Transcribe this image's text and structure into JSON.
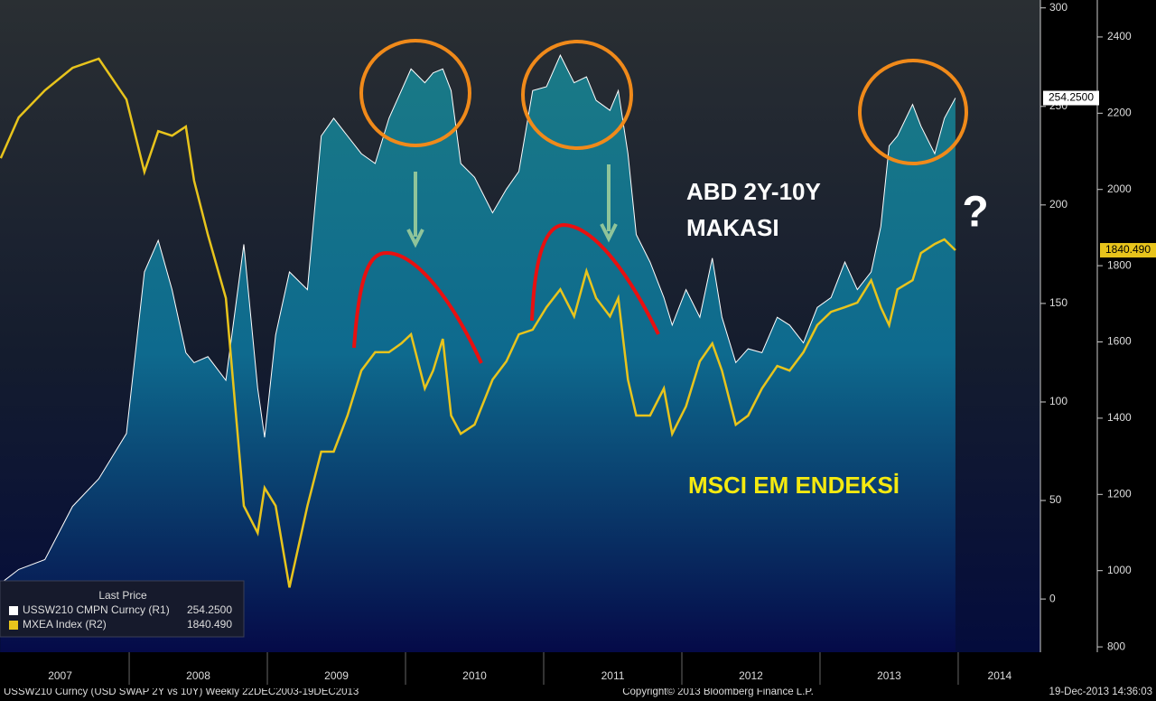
{
  "chart_data": {
    "type": "line",
    "x": [
      2007.07,
      2007.2,
      2007.39,
      2007.59,
      2007.78,
      2007.98,
      2008.11,
      2008.21,
      2008.31,
      2008.41,
      2008.47,
      2008.57,
      2008.7,
      2008.83,
      2008.93,
      2008.98,
      2009.06,
      2009.16,
      2009.29,
      2009.39,
      2009.48,
      2009.58,
      2009.68,
      2009.78,
      2009.88,
      2009.97,
      2010.04,
      2010.14,
      2010.2,
      2010.27,
      2010.33,
      2010.4,
      2010.5,
      2010.63,
      2010.73,
      2010.82,
      2010.92,
      2011.02,
      2011.12,
      2011.22,
      2011.31,
      2011.38,
      2011.48,
      2011.54,
      2011.61,
      2011.67,
      2011.77,
      2011.87,
      2011.93,
      2012.03,
      2012.13,
      2012.22,
      2012.29,
      2012.39,
      2012.48,
      2012.58,
      2012.69,
      2012.78,
      2012.88,
      2012.98,
      2013.08,
      2013.18,
      2013.27,
      2013.37,
      2013.44,
      2013.5,
      2013.56,
      2013.67,
      2013.73,
      2013.83,
      2013.9,
      2013.98
    ],
    "series": [
      {
        "name": "USSW210 CMPN Curncy  (R1)",
        "color": "#ffffff",
        "axis": "y",
        "last_label": "254.2500",
        "values": [
          8,
          15,
          20,
          47,
          61,
          84,
          166,
          182,
          157,
          125,
          120,
          123,
          111,
          180,
          107,
          82,
          134,
          166,
          157,
          235,
          244,
          235,
          226,
          221,
          244,
          258,
          269,
          262,
          267,
          269,
          258,
          221,
          214,
          196,
          208,
          217,
          258,
          260,
          276,
          262,
          265,
          253,
          248,
          258,
          226,
          185,
          171,
          153,
          139,
          157,
          143,
          173,
          143,
          120,
          127,
          125,
          143,
          139,
          130,
          148,
          153,
          171,
          157,
          166,
          189,
          230,
          235,
          251,
          240,
          226,
          244,
          254.25
        ]
      },
      {
        "name": "MXEA Index  (R2)",
        "color": "#e8c41c",
        "axis": "y2",
        "last_label": "1840.490",
        "values": [
          2082,
          2189,
          2260,
          2319,
          2343,
          2236,
          2046,
          2153,
          2141,
          2165,
          2023,
          1881,
          1715,
          1170,
          1099,
          1217,
          1170,
          956,
          1170,
          1312,
          1312,
          1407,
          1525,
          1573,
          1573,
          1596,
          1620,
          1478,
          1525,
          1608,
          1407,
          1359,
          1383,
          1501,
          1549,
          1620,
          1632,
          1691,
          1738,
          1667,
          1786,
          1715,
          1667,
          1715,
          1501,
          1407,
          1407,
          1478,
          1359,
          1431,
          1549,
          1596,
          1525,
          1383,
          1407,
          1478,
          1537,
          1525,
          1573,
          1644,
          1679,
          1691,
          1703,
          1762,
          1691,
          1644,
          1738,
          1762,
          1833,
          1857,
          1869,
          1840.49
        ]
      }
    ],
    "xlim": [
      2007.065,
      2014.595
    ],
    "xticks": [
      {
        "value": 2007.5,
        "label": "2007"
      },
      {
        "value": 2008.5,
        "label": "2008"
      },
      {
        "value": 2009.5,
        "label": "2009"
      },
      {
        "value": 2010.5,
        "label": "2010"
      },
      {
        "value": 2011.5,
        "label": "2011"
      },
      {
        "value": 2012.5,
        "label": "2012"
      },
      {
        "value": 2013.5,
        "label": "2013"
      },
      {
        "value": 2014.3,
        "label": "2014"
      }
    ],
    "ylim": [
      -27,
      304
    ],
    "yticks": [
      0,
      50,
      100,
      150,
      200,
      250,
      300
    ],
    "y2lim": [
      786,
      2497
    ],
    "y2ticks": [
      800,
      1000,
      1200,
      1400,
      1600,
      1800,
      2000,
      2200,
      2400
    ],
    "legend_title": "Last Price",
    "annotations": [
      "ABD 2Y-10Y",
      "MAKASI",
      "MSCI EM ENDEKSİ",
      "?"
    ]
  },
  "footer": [
    "USSW210 Curncy (USD SWAP    2Y vs 10Y)  Weekly 22DEC2003-19DEC2013",
    "Copyright© 2013 Bloomberg Finance L.P.",
    "19-Dec-2013 14:36:03"
  ]
}
